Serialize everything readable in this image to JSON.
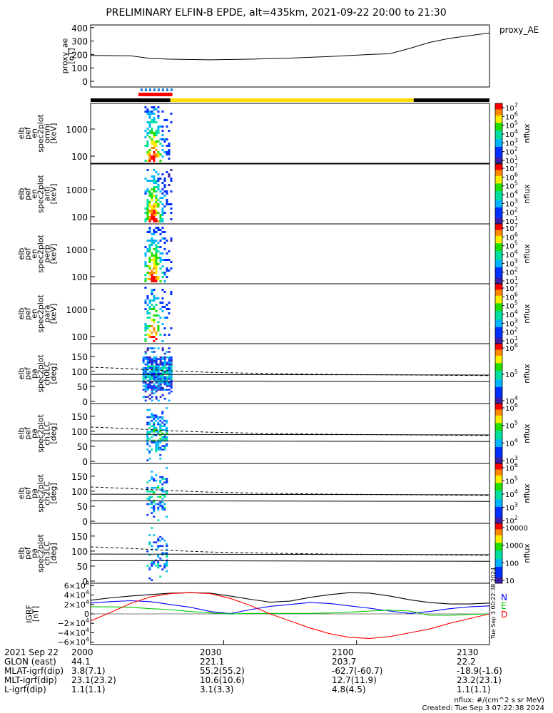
{
  "title": "PRELIMINARY ELFIN-B EPDE, alt=435km, 2021-09-22 20:00 to 21:30",
  "chart_data": {
    "type": "spectrogram-stack",
    "time_range": [
      "20:00",
      "21:30"
    ],
    "ae_panel": {
      "ylabel": [
        "proxy_ae",
        "[nT]"
      ],
      "ticks": [
        "400",
        "300",
        "200",
        "100",
        "0"
      ],
      "legend": "proxy_AE",
      "ylim": [
        0,
        420
      ],
      "t": [
        0,
        0.1,
        0.15,
        0.2,
        0.3,
        0.4,
        0.5,
        0.6,
        0.7,
        0.75,
        0.8,
        0.85,
        0.9,
        1.0
      ],
      "values": [
        193,
        190,
        170,
        165,
        160,
        165,
        173,
        185,
        200,
        205,
        245,
        290,
        320,
        360
      ]
    },
    "bar": {
      "colors": [
        "#000000",
        "#ffdd00",
        "#000000"
      ],
      "segments": [
        [
          0,
          0.2
        ],
        [
          0.2,
          0.81
        ],
        [
          0.81,
          1.0
        ]
      ]
    },
    "science_zone": {
      "blue_start": 0.125,
      "blue_end": 0.205,
      "red_start": 0.12,
      "red_end": 0.205
    },
    "energy_panels": [
      {
        "ylabel": [
          "elb",
          "pef",
          "en",
          "spec2plot",
          "omni",
          "[keV]"
        ],
        "ticks": [
          "1000",
          "100"
        ]
      },
      {
        "ylabel": [
          "elb",
          "pef",
          "en",
          "spec2plot",
          "anti",
          "[keV]"
        ],
        "ticks": [
          "1000",
          "100"
        ]
      },
      {
        "ylabel": [
          "elb",
          "pef",
          "en",
          "spec2plot",
          "perp",
          "[keV]"
        ],
        "ticks": [
          "1000",
          "100"
        ]
      },
      {
        "ylabel": [
          "elb",
          "pef",
          "en",
          "spec2plot",
          "para",
          "[keV]"
        ],
        "ticks": [
          "1000",
          "100"
        ]
      }
    ],
    "energy_colorbar": {
      "label": "nflux",
      "ticks": [
        "10^7",
        "10^6",
        "10^5",
        "10^4",
        "10^3",
        "10^2",
        "10^1"
      ]
    },
    "pa_panels": [
      {
        "ylabel": [
          "elb",
          "pef",
          "pa",
          "spec2plot",
          "ch0LC",
          "[deg]"
        ],
        "ticks": [
          "150",
          "100",
          "50",
          "0"
        ],
        "cbticks": [
          "10^6",
          "10^5",
          "10^4"
        ]
      },
      {
        "ylabel": [
          "elb",
          "pef",
          "pa",
          "spec2plot",
          "ch1LC",
          "[deg]"
        ],
        "ticks": [
          "150",
          "100",
          "50",
          "0"
        ],
        "cbticks": [
          "10^6",
          "10^5",
          "10^4",
          "10^3"
        ]
      },
      {
        "ylabel": [
          "elb",
          "pef",
          "pa",
          "spec2plot",
          "ch2LC",
          "[deg]"
        ],
        "ticks": [
          "150",
          "100",
          "50",
          "0"
        ],
        "cbticks": [
          "10^6",
          "10^5",
          "10^4",
          "10^3",
          "10^2"
        ]
      },
      {
        "ylabel": [
          "elb",
          "pef",
          "pa",
          "spec2plot",
          "ch3LC",
          "[deg]"
        ],
        "ticks": [
          "150",
          "100",
          "50",
          "0"
        ],
        "cbticks": [
          "10000",
          "1000",
          "100",
          "10"
        ]
      }
    ],
    "pa_colorbar_label": "nflux",
    "igrf": {
      "ylabel": [
        "IGRF",
        "[nT]"
      ],
      "ticks": [
        "6×10^4",
        "4×10^4",
        "2×10^4",
        "0",
        "−2×10^4",
        "−4×10^4",
        "−6×10^4"
      ],
      "ylim": [
        -65000,
        65000
      ],
      "legend": [
        "N",
        "E",
        "D"
      ],
      "colors": [
        "#0000ff",
        "#00cc00",
        "#ff0000"
      ],
      "t": [
        0,
        0.05,
        0.1,
        0.15,
        0.2,
        0.25,
        0.3,
        0.35,
        0.4,
        0.45,
        0.5,
        0.55,
        0.6,
        0.65,
        0.7,
        0.75,
        0.8,
        0.85,
        0.9,
        0.95,
        1.0
      ],
      "total": [
        29000,
        34000,
        38000,
        41000,
        44000,
        45000,
        44000,
        38000,
        31000,
        25000,
        27000,
        35000,
        41000,
        45000,
        44000,
        38000,
        30000,
        24000,
        21000,
        21000,
        23000
      ],
      "N": [
        23000,
        26000,
        28000,
        26000,
        20000,
        14000,
        5000,
        500,
        9000,
        16000,
        20000,
        24000,
        22000,
        17000,
        12000,
        6000,
        1000,
        5000,
        11000,
        15000,
        17000
      ],
      "E": [
        15000,
        15000,
        14000,
        11000,
        9000,
        5000,
        2000,
        0,
        1000,
        1000,
        1000,
        1000,
        2000,
        4000,
        6000,
        8000,
        6000,
        -3000,
        -3000,
        -1000,
        0
      ],
      "D": [
        -15000,
        3000,
        22000,
        36000,
        43000,
        45000,
        43000,
        33000,
        18000,
        0,
        -15000,
        -30000,
        -42000,
        -50000,
        -52000,
        -48000,
        -40000,
        -32000,
        -20000,
        -10000,
        0
      ]
    },
    "date_tag": "Tue Sep  3 00:22:38 2024"
  },
  "footer": {
    "rows": [
      {
        "label": "2021 Sep 22",
        "values": [
          "2000",
          "2030",
          "2100",
          "2130"
        ]
      },
      {
        "label": "GLON (east)",
        "values": [
          "44.1",
          "221.1",
          "203.7",
          "22.2"
        ]
      },
      {
        "label": "MLAT-igrf(dip)",
        "values": [
          "3.8(7.1)",
          "55.2(55.2)",
          "-62.7(-60.7)",
          "-18.9(-1.6)"
        ]
      },
      {
        "label": "MLT-igrf(dip)",
        "values": [
          "23.1(23.2)",
          "10.6(10.6)",
          "12.7(11.9)",
          "23.2(23.1)"
        ]
      },
      {
        "label": "L-igrf(dip)",
        "values": [
          "1.1(1.1)",
          "3.1(3.3)",
          "4.8(4.5)",
          "1.1(1.1)"
        ]
      }
    ],
    "units": "nflux: #/(cm^2 s sr MeV)",
    "created": "Created: Tue Sep  3 07:22:38 2024"
  }
}
